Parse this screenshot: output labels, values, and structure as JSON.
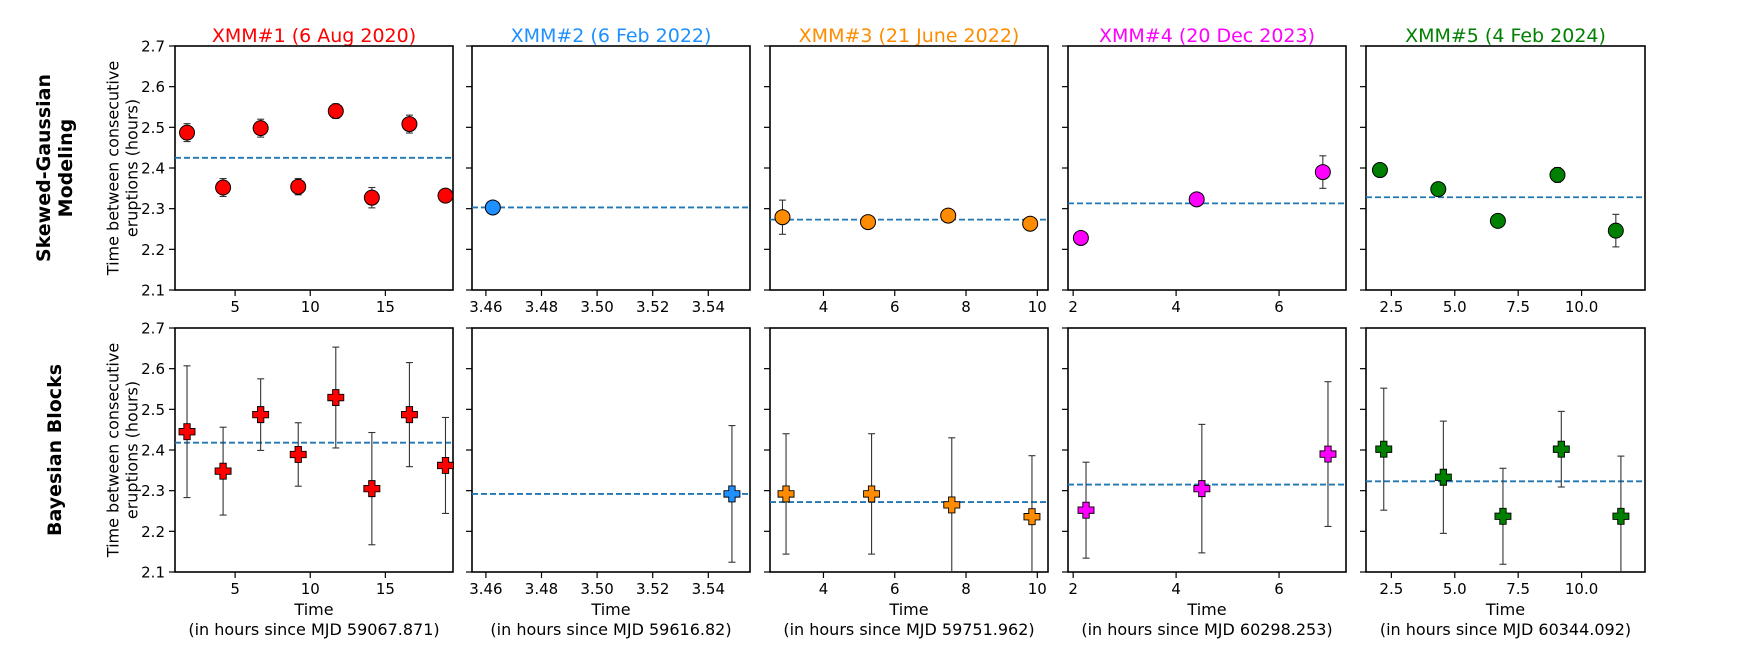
{
  "figure": {
    "row_labels": [
      [
        "Skewed-Gaussian",
        "Modeling"
      ],
      [
        "Bayesian Blocks"
      ]
    ],
    "ylabel_lines": [
      "Time between consecutive",
      "eruptions (hours)"
    ],
    "xlabel": "Time",
    "y_ticks": [
      "2.1",
      "2.2",
      "2.3",
      "2.4",
      "2.5",
      "2.6",
      "2.7"
    ],
    "colors": {
      "mean_line": "#1f77b4",
      "axes": "#000000",
      "errorbar": "#333333"
    }
  },
  "chart_data": [
    {
      "type": "scatter",
      "title": "XMM#1 (6 Aug 2020)",
      "color": "#ff0000",
      "xlim": [
        1.0,
        19.5
      ],
      "ylim": [
        2.1,
        2.7
      ],
      "x_ticks": [
        5,
        10,
        15
      ],
      "x_tick_labels": [
        "5",
        "10",
        "15"
      ],
      "x_subtitle": "(in hours since MJD 59067.871)",
      "skewed": {
        "mean": 2.425,
        "points": [
          {
            "x": 1.8,
            "y": 2.487,
            "err": 0.022
          },
          {
            "x": 4.2,
            "y": 2.352,
            "err": 0.022
          },
          {
            "x": 6.7,
            "y": 2.498,
            "err": 0.022
          },
          {
            "x": 9.2,
            "y": 2.354,
            "err": 0.02
          },
          {
            "x": 11.7,
            "y": 2.54,
            "err": 0.018
          },
          {
            "x": 14.1,
            "y": 2.327,
            "err": 0.025
          },
          {
            "x": 16.6,
            "y": 2.508,
            "err": 0.022
          },
          {
            "x": 19.0,
            "y": 2.332,
            "err": 0.01
          }
        ]
      },
      "bayesian": {
        "mean": 2.418,
        "points": [
          {
            "x": 1.8,
            "y": 2.445,
            "err": 0.162
          },
          {
            "x": 4.2,
            "y": 2.348,
            "err": 0.108
          },
          {
            "x": 6.7,
            "y": 2.487,
            "err": 0.088
          },
          {
            "x": 9.2,
            "y": 2.389,
            "err": 0.078
          },
          {
            "x": 11.7,
            "y": 2.529,
            "err": 0.124
          },
          {
            "x": 14.1,
            "y": 2.305,
            "err": 0.138
          },
          {
            "x": 16.6,
            "y": 2.487,
            "err": 0.128
          },
          {
            "x": 19.0,
            "y": 2.362,
            "err": 0.118
          }
        ]
      }
    },
    {
      "type": "scatter",
      "title": "XMM#2 (6 Feb 2022)",
      "color": "#1e90ff",
      "xlim": [
        3.455,
        3.555
      ],
      "ylim": [
        2.1,
        2.7
      ],
      "x_ticks": [
        3.46,
        3.48,
        3.5,
        3.52,
        3.54
      ],
      "x_tick_labels": [
        "3.46",
        "3.48",
        "3.50",
        "3.52",
        "3.54"
      ],
      "x_subtitle": "(in hours since MJD 59616.82)",
      "skewed": {
        "mean": 2.303,
        "points": [
          {
            "x": 3.4625,
            "y": 2.303,
            "err": 0.012
          }
        ]
      },
      "bayesian": {
        "mean": 2.292,
        "points": [
          {
            "x": 3.5485,
            "y": 2.292,
            "err": 0.168
          }
        ]
      }
    },
    {
      "type": "scatter",
      "title": "XMM#3 (21 June  2022)",
      "color": "#ff8c00",
      "xlim": [
        2.5,
        10.3
      ],
      "ylim": [
        2.1,
        2.7
      ],
      "x_ticks": [
        4,
        6,
        8,
        10
      ],
      "x_tick_labels": [
        "4",
        "6",
        "8",
        "10"
      ],
      "x_subtitle": "(in hours since MJD 59751.962)",
      "skewed": {
        "mean": 2.273,
        "points": [
          {
            "x": 2.85,
            "y": 2.279,
            "err": 0.042
          },
          {
            "x": 5.25,
            "y": 2.267,
            "err": 0.01
          },
          {
            "x": 7.5,
            "y": 2.283,
            "err": 0.01
          },
          {
            "x": 9.8,
            "y": 2.263,
            "err": 0.012
          }
        ]
      },
      "bayesian": {
        "mean": 2.272,
        "points": [
          {
            "x": 2.95,
            "y": 2.292,
            "err": 0.148
          },
          {
            "x": 5.35,
            "y": 2.292,
            "err": 0.148
          },
          {
            "x": 7.6,
            "y": 2.265,
            "err": 0.165
          },
          {
            "x": 9.85,
            "y": 2.236,
            "err": 0.15
          }
        ]
      }
    },
    {
      "type": "scatter",
      "title": "XMM#4 (20 Dec 2023)",
      "color": "#ff00ff",
      "xlim": [
        1.9,
        7.3
      ],
      "ylim": [
        2.1,
        2.7
      ],
      "x_ticks": [
        2,
        4,
        6
      ],
      "x_tick_labels": [
        "2",
        "4",
        "6"
      ],
      "x_subtitle": "(in hours since MJD 60298.253)",
      "skewed": {
        "mean": 2.313,
        "points": [
          {
            "x": 2.15,
            "y": 2.228,
            "err": 0.008
          },
          {
            "x": 4.4,
            "y": 2.323,
            "err": 0.008
          },
          {
            "x": 6.85,
            "y": 2.39,
            "err": 0.04
          }
        ]
      },
      "bayesian": {
        "mean": 2.315,
        "points": [
          {
            "x": 2.25,
            "y": 2.252,
            "err": 0.118
          },
          {
            "x": 4.5,
            "y": 2.305,
            "err": 0.158
          },
          {
            "x": 6.95,
            "y": 2.39,
            "err": 0.178
          }
        ]
      }
    },
    {
      "type": "scatter",
      "title": "XMM#5 (4 Feb 2024)",
      "color": "#008000",
      "xlim": [
        1.5,
        12.5
      ],
      "ylim": [
        2.1,
        2.7
      ],
      "x_ticks": [
        2.5,
        5.0,
        7.5,
        10.0
      ],
      "x_tick_labels": [
        "2.5",
        "5.0",
        "7.5",
        "10.0"
      ],
      "x_subtitle": "(in hours since MJD 60344.092)",
      "skewed": {
        "mean": 2.328,
        "points": [
          {
            "x": 2.05,
            "y": 2.395,
            "err": 0.008
          },
          {
            "x": 4.35,
            "y": 2.348,
            "err": 0.01
          },
          {
            "x": 6.7,
            "y": 2.27,
            "err": 0.01
          },
          {
            "x": 9.05,
            "y": 2.383,
            "err": 0.018
          },
          {
            "x": 11.35,
            "y": 2.246,
            "err": 0.04
          }
        ]
      },
      "bayesian": {
        "mean": 2.323,
        "points": [
          {
            "x": 2.2,
            "y": 2.402,
            "err": 0.15
          },
          {
            "x": 4.55,
            "y": 2.333,
            "err": 0.138
          },
          {
            "x": 6.9,
            "y": 2.237,
            "err": 0.118
          },
          {
            "x": 9.2,
            "y": 2.402,
            "err": 0.093
          },
          {
            "x": 11.55,
            "y": 2.237,
            "err": 0.148
          }
        ]
      }
    }
  ]
}
